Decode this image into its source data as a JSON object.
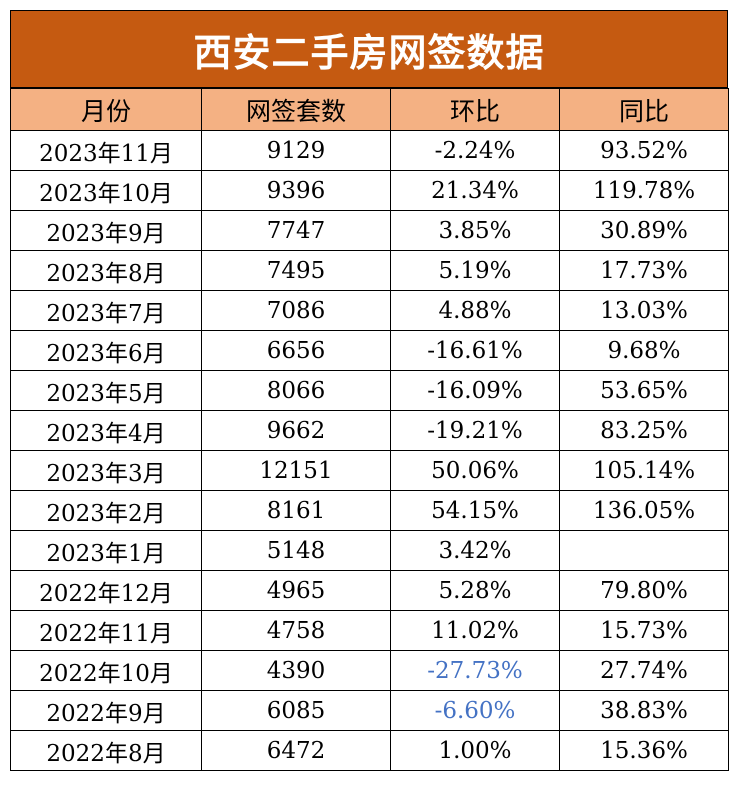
{
  "title": "西安二手房网签数据",
  "headers": [
    "月份",
    "网签套数",
    "环比",
    "同比"
  ],
  "rows": [
    {
      "month": "2023年11月",
      "count": "9129",
      "mom": "-2.24%",
      "yoy": "93.52%"
    },
    {
      "month": "2023年10月",
      "count": "9396",
      "mom": "21.34%",
      "yoy": "119.78%"
    },
    {
      "month": "2023年9月",
      "count": "7747",
      "mom": "3.85%",
      "yoy": "30.89%"
    },
    {
      "month": "2023年8月",
      "count": "7495",
      "mom": "5.19%",
      "yoy": "17.73%"
    },
    {
      "month": "2023年7月",
      "count": "7086",
      "mom": "4.88%",
      "yoy": "13.03%"
    },
    {
      "month": "2023年6月",
      "count": "6656",
      "mom": "-16.61%",
      "yoy": "9.68%"
    },
    {
      "month": "2023年5月",
      "count": "8066",
      "mom": "-16.09%",
      "yoy": "53.65%"
    },
    {
      "month": "2023年4月",
      "count": "9662",
      "mom": "-19.21%",
      "yoy": "83.25%"
    },
    {
      "month": "2023年3月",
      "count": "12151",
      "mom": "50.06%",
      "yoy": "105.14%"
    },
    {
      "month": "2023年2月",
      "count": "8161",
      "mom": "54.15%",
      "yoy": "136.05%"
    },
    {
      "month": "2023年1月",
      "count": "5148",
      "mom": "3.42%",
      "yoy": ""
    },
    {
      "month": "2022年12月",
      "count": "4965",
      "mom": "5.28%",
      "yoy": "79.80%"
    },
    {
      "month": "2022年11月",
      "count": "4758",
      "mom": "11.02%",
      "yoy": "15.73%"
    },
    {
      "month": "2022年10月",
      "count": "4390",
      "mom": "-27.73%",
      "yoy": "27.74%"
    },
    {
      "month": "2022年9月",
      "count": "6085",
      "mom": "-6.60%",
      "yoy": "38.83%"
    },
    {
      "month": "2022年8月",
      "count": "6472",
      "mom": "1.00%",
      "yoy": "15.36%"
    }
  ],
  "colors": {
    "title_bg": "#c55a11",
    "header_bg": "#f4b183",
    "highlight_text": "#4472c4"
  }
}
